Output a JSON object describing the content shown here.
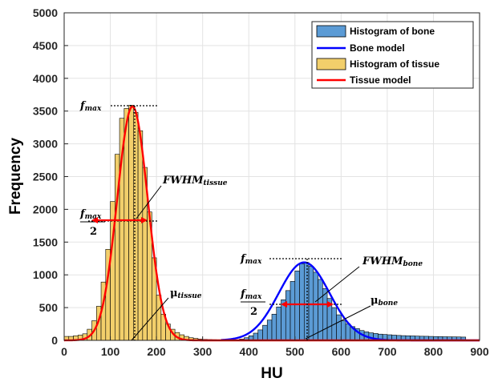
{
  "chart_data": {
    "type": "bar",
    "xlabel": "HU",
    "ylabel": "Frequency",
    "xlim": [
      0,
      900
    ],
    "ylim": [
      0,
      5000
    ],
    "xticks": [
      "0",
      "100",
      "200",
      "300",
      "400",
      "500",
      "600",
      "700",
      "800",
      "900"
    ],
    "yticks": [
      "0",
      "500",
      "1000",
      "1500",
      "2000",
      "2500",
      "3000",
      "3500",
      "4000",
      "4500",
      "5000"
    ],
    "grid": true,
    "legend_position": "top-right",
    "bin_width": 10,
    "series": [
      {
        "name": "Histogram of bone",
        "kind": "histogram",
        "color": "#5B9BD5",
        "bin_starts": [
          380,
          390,
          400,
          410,
          420,
          430,
          440,
          450,
          460,
          470,
          480,
          490,
          500,
          510,
          520,
          530,
          540,
          550,
          560,
          570,
          580,
          590,
          600,
          610,
          620,
          630,
          640,
          650,
          660,
          670,
          680,
          690,
          700,
          710,
          720,
          730,
          740,
          750,
          760,
          770,
          780,
          790,
          800,
          810,
          820,
          830,
          840,
          850,
          860
        ],
        "values": [
          20,
          40,
          70,
          110,
          160,
          230,
          310,
          400,
          510,
          620,
          760,
          900,
          1060,
          1170,
          1190,
          1130,
          1040,
          930,
          790,
          640,
          500,
          390,
          300,
          250,
          210,
          180,
          150,
          130,
          115,
          105,
          95,
          90,
          85,
          80,
          75,
          72,
          70,
          68,
          65,
          63,
          62,
          60,
          58,
          57,
          55,
          54,
          53,
          52,
          50
        ]
      },
      {
        "name": "Bone model",
        "kind": "gaussian",
        "color": "#0000FF",
        "mu": 520,
        "fmax": 1190,
        "sigma": 55,
        "x_range": [
          340,
          900
        ]
      },
      {
        "name": "Histogram of tissue",
        "kind": "histogram",
        "color": "#F2CF6B",
        "bin_starts": [
          0,
          10,
          20,
          30,
          40,
          50,
          60,
          70,
          80,
          90,
          100,
          110,
          120,
          130,
          140,
          150,
          160,
          170,
          180,
          190,
          200,
          210,
          220,
          230,
          240,
          250,
          260,
          270,
          280,
          290,
          300,
          310,
          320,
          330,
          340,
          350,
          360,
          370,
          380,
          390,
          400,
          410,
          420,
          430,
          440,
          450,
          460,
          470,
          480,
          490,
          500,
          510,
          520,
          530,
          540,
          550,
          560,
          570,
          580,
          590,
          600,
          610,
          620,
          630,
          640,
          650,
          660,
          670,
          680,
          690,
          700,
          710,
          720,
          730,
          740,
          750,
          760,
          770,
          780,
          790,
          800,
          810,
          820,
          830,
          840,
          850,
          860,
          870,
          880,
          890
        ],
        "values": [
          60,
          60,
          70,
          80,
          100,
          170,
          300,
          520,
          890,
          1390,
          2120,
          2840,
          3390,
          3540,
          3590,
          3480,
          3200,
          2640,
          1960,
          1260,
          690,
          400,
          250,
          170,
          120,
          85,
          60,
          40,
          30,
          20,
          15,
          12,
          10,
          8,
          6,
          5,
          5,
          5,
          5,
          5,
          5,
          5,
          5,
          5,
          5,
          5,
          5,
          5,
          5,
          5,
          5,
          5,
          5,
          5,
          5,
          5,
          5,
          5,
          5,
          5,
          5,
          5,
          5,
          5,
          5,
          5,
          5,
          5,
          5,
          5,
          5,
          5,
          5,
          5,
          5,
          5,
          5,
          5,
          5,
          5,
          5,
          5,
          5,
          5,
          5,
          5,
          5,
          5,
          5,
          5
        ]
      },
      {
        "name": "Tissue model",
        "kind": "gaussian",
        "color": "#FF0000",
        "mu": 148,
        "fmax": 3570,
        "sigma": 33,
        "x_range": [
          0,
          900
        ]
      }
    ]
  },
  "annotations": {
    "fmax_tissue": {
      "f": "f",
      "sub": "max"
    },
    "half_tissue": {
      "num_f": "f",
      "num_sub": "max",
      "den": "2"
    },
    "fwhm_tissue": {
      "main": "FWHM",
      "sub": "tissue"
    },
    "mu_tissue": {
      "main": "μ",
      "sub": "tissue"
    },
    "fmax_bone": {
      "f": "f",
      "sub": "max"
    },
    "half_bone": {
      "num_f": "f",
      "num_sub": "max",
      "den": "2"
    },
    "fwhm_bone": {
      "main": "FWHM",
      "sub": "bone"
    },
    "mu_bone": {
      "main": "μ",
      "sub": "bone"
    }
  }
}
